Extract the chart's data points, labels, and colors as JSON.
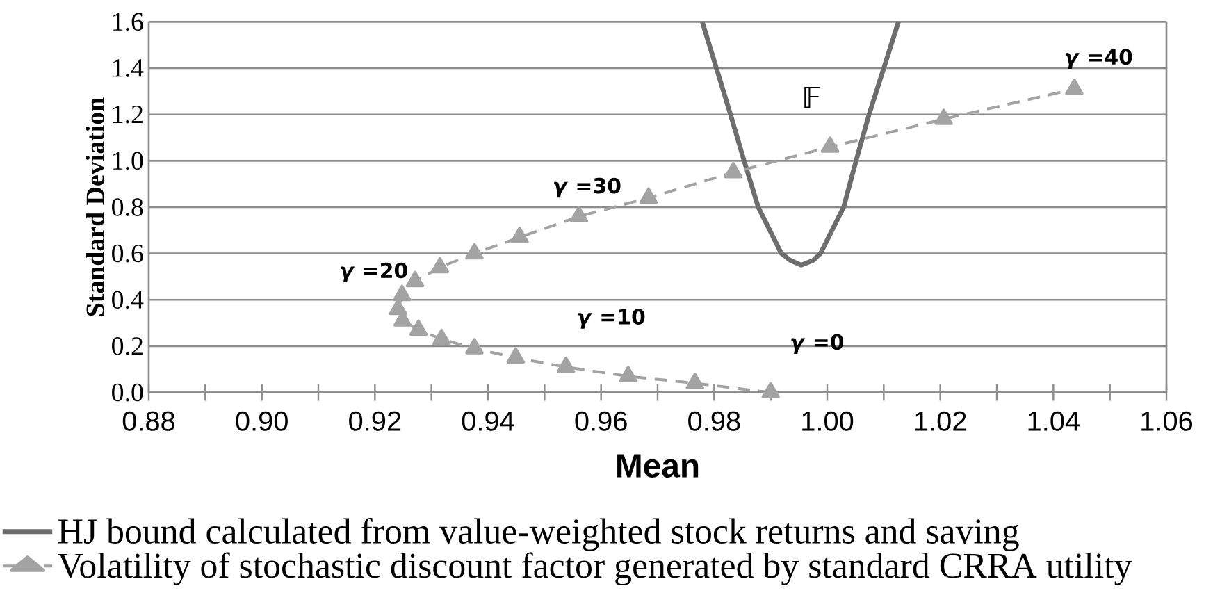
{
  "chart_data": {
    "type": "line",
    "xlabel": "Mean",
    "ylabel": "Standard Deviation",
    "xlim": [
      0.88,
      1.06
    ],
    "ylim": [
      0,
      1.6
    ],
    "xticks": [
      {
        "value": 0.88,
        "label": "0.88"
      },
      {
        "value": 0.89,
        "label": null
      },
      {
        "value": 0.9,
        "label": "0.90"
      },
      {
        "value": 0.91,
        "label": null
      },
      {
        "value": 0.92,
        "label": "0.92"
      },
      {
        "value": 0.93,
        "label": null
      },
      {
        "value": 0.94,
        "label": "0.94"
      },
      {
        "value": 0.95,
        "label": null
      },
      {
        "value": 0.96,
        "label": "0.96"
      },
      {
        "value": 0.97,
        "label": null
      },
      {
        "value": 0.98,
        "label": "0.98"
      },
      {
        "value": 0.99,
        "label": null
      },
      {
        "value": 1.0,
        "label": "1.00"
      },
      {
        "value": 1.01,
        "label": null
      },
      {
        "value": 1.02,
        "label": "1.02"
      },
      {
        "value": 1.03,
        "label": null
      },
      {
        "value": 1.04,
        "label": "1.04"
      },
      {
        "value": 1.05,
        "label": null
      },
      {
        "value": 1.06,
        "label": "1.06"
      }
    ],
    "yticks": [
      {
        "value": 0,
        "label": "0.0"
      },
      {
        "value": 0.2,
        "label": "0.2"
      },
      {
        "value": 0.4,
        "label": "0.4"
      },
      {
        "value": 0.6,
        "label": "0.6"
      },
      {
        "value": 0.8,
        "label": "0.8"
      },
      {
        "value": 1.0,
        "label": "1.0"
      },
      {
        "value": 1.2,
        "label": "1.2"
      },
      {
        "value": 1.4,
        "label": "1.4"
      },
      {
        "value": 1.6,
        "label": "1.6"
      }
    ],
    "grid": "y",
    "legend": "bottom",
    "series": [
      {
        "name": "HJ bound calculated from value-weighted stock returns and saving",
        "color": "#6d6d6d",
        "marker": "none",
        "line_style": "solid",
        "x": [
          0.9779,
          0.9804,
          0.9829,
          0.9853,
          0.9878,
          0.9919,
          0.9935,
          0.9954,
          0.9975,
          0.9988,
          1.0029,
          1.0051,
          1.0074,
          1.01,
          1.0126
        ],
        "values": [
          1.6,
          1.4,
          1.2,
          1.0,
          0.8,
          0.6,
          0.57,
          0.55,
          0.57,
          0.6,
          0.8,
          1.0,
          1.2,
          1.4,
          1.6
        ]
      },
      {
        "name": "Volatility of stochastic discount factor generated by standard CRRA utility",
        "color": "#a3a3a3",
        "marker": "triangle",
        "line_style": "dashed",
        "x": [
          0.99,
          0.9766,
          0.9648,
          0.9538,
          0.9449,
          0.9376,
          0.9318,
          0.9277,
          0.9249,
          0.9241,
          0.9248,
          0.9271,
          0.9315,
          0.9376,
          0.9456,
          0.9561,
          0.9684,
          0.9834,
          1.0005,
          1.0206,
          1.0437
        ],
        "values": [
          0,
          0.04,
          0.07,
          0.11,
          0.15,
          0.19,
          0.23,
          0.27,
          0.31,
          0.36,
          0.42,
          0.48,
          0.54,
          0.6,
          0.67,
          0.76,
          0.84,
          0.95,
          1.06,
          1.18,
          1.31
        ]
      }
    ],
    "annotations": [
      "*γ* =40",
      "*γ* =30",
      "*γ* =20",
      "*γ* =10",
      "*γ* =0",
      "𝔽"
    ]
  }
}
